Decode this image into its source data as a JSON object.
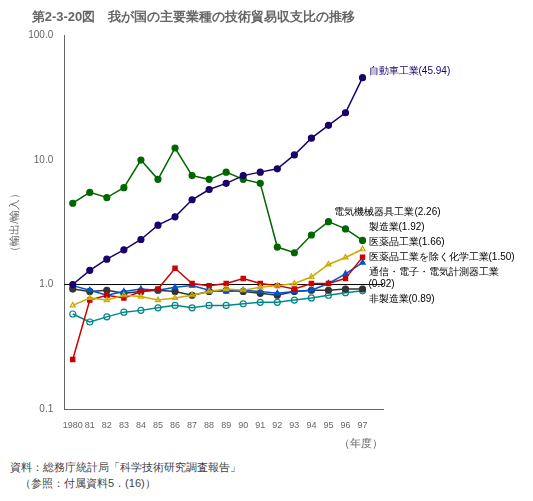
{
  "chart_data": {
    "type": "line",
    "title": "第2-3-20図　我が国の主要業種の技術貿易収支比の推移",
    "ylabel": "（輸出/輸入）",
    "xlabel": "（年度）",
    "log": "y",
    "grid": false,
    "x": [
      1980,
      1981,
      1982,
      1983,
      1984,
      1985,
      1986,
      1987,
      1988,
      1989,
      1990,
      1991,
      1992,
      1993,
      1994,
      1995,
      1996,
      1997
    ],
    "xlim": [
      1979.5,
      1998.2
    ],
    "xticks": [
      1980,
      {
        "value": 1981,
        "label": "81"
      },
      {
        "value": 1982,
        "label": "82"
      },
      {
        "value": 1983,
        "label": "83"
      },
      {
        "value": 1984,
        "label": "84"
      },
      {
        "value": 1985,
        "label": "85"
      },
      {
        "value": 1986,
        "label": "86"
      },
      {
        "value": 1987,
        "label": "87"
      },
      {
        "value": 1988,
        "label": "88"
      },
      {
        "value": 1989,
        "label": "89"
      },
      {
        "value": 1990,
        "label": "90"
      },
      {
        "value": 1991,
        "label": "91"
      },
      {
        "value": 1992,
        "label": "92"
      },
      {
        "value": 1993,
        "label": "93"
      },
      {
        "value": 1994,
        "label": "94"
      },
      {
        "value": 1995,
        "label": "95"
      },
      {
        "value": 1996,
        "label": "96"
      },
      {
        "value": 1997,
        "label": "97"
      }
    ],
    "ylim": [
      0.1,
      100.0
    ],
    "yticks": [
      0.1,
      {
        "value": 1.0,
        "label": "1.0"
      },
      {
        "value": 10.0,
        "label": "10.0"
      },
      {
        "value": 100.0,
        "label": "100.0"
      }
    ],
    "reference_lines": [
      1.0
    ],
    "series": [
      {
        "color": "#1a006b",
        "marker": "circle",
        "values": [
          1.0,
          1.3,
          1.6,
          1.9,
          2.3,
          3.0,
          3.5,
          4.8,
          5.8,
          6.5,
          7.5,
          8.0,
          8.5,
          11.0,
          15.0,
          19.0,
          24.0,
          45.94
        ]
      },
      {
        "color": "#006600",
        "marker": "circle",
        "values": [
          4.5,
          5.5,
          5.0,
          6.0,
          10.0,
          7.0,
          12.5,
          7.5,
          7.0,
          8.0,
          7.0,
          6.5,
          2.0,
          1.8,
          2.5,
          3.2,
          2.8,
          2.26
        ]
      },
      {
        "color": "#ccaa00",
        "marker": "triangle-open",
        "values": [
          0.68,
          0.78,
          0.75,
          0.82,
          0.8,
          0.75,
          0.78,
          0.82,
          0.88,
          0.92,
          0.9,
          0.95,
          0.98,
          1.02,
          1.15,
          1.45,
          1.65,
          1.92
        ]
      },
      {
        "color": "#cc0000",
        "marker": "square",
        "values": [
          0.25,
          0.75,
          0.82,
          0.78,
          0.88,
          0.92,
          1.35,
          1.02,
          0.98,
          1.02,
          1.12,
          1.02,
          0.98,
          0.92,
          1.02,
          1.02,
          1.12,
          1.66
        ]
      },
      {
        "color": "#0055cc",
        "marker": "triangle",
        "values": [
          0.98,
          0.9,
          0.82,
          0.88,
          0.92,
          0.9,
          0.95,
          0.98,
          0.9,
          0.88,
          0.9,
          0.88,
          0.85,
          0.88,
          0.9,
          1.02,
          1.22,
          1.5
        ]
      },
      {
        "color": "#333333",
        "marker": "circle",
        "values": [
          0.92,
          0.88,
          0.9,
          0.85,
          0.88,
          0.9,
          0.88,
          0.82,
          0.88,
          0.9,
          0.88,
          0.85,
          0.82,
          0.88,
          0.9,
          0.9,
          0.92,
          0.92
        ]
      },
      {
        "color": "#008888",
        "marker": "circle-open",
        "values": [
          0.58,
          0.5,
          0.55,
          0.6,
          0.62,
          0.65,
          0.68,
          0.65,
          0.68,
          0.68,
          0.7,
          0.72,
          0.72,
          0.75,
          0.78,
          0.82,
          0.86,
          0.89
        ]
      }
    ],
    "annotations": [
      {
        "text": "自動車工業(45.94)",
        "x": 1997,
        "y": 45.94,
        "color": "#1a006b"
      },
      {
        "text": "電気機械器具工業(2.26)",
        "x": 1995,
        "y": 3.2,
        "color": "#000000"
      },
      {
        "text": "製造業(1.92)",
        "x": 1997,
        "y": 1.92,
        "color": "#000000"
      },
      {
        "text": "医薬品工業(1.66)",
        "x": 1997,
        "y": 1.66,
        "color": "#000000"
      },
      {
        "text": "医薬品工業を除く化学工業(1.50)",
        "x": 1997,
        "y": 1.5,
        "color": "#000000"
      },
      {
        "text": "通信・電子・電気計測器工業\n(0.92)",
        "x": 1997,
        "y": 0.92,
        "color": "#000000"
      },
      {
        "text": "非製造業(0.89)",
        "x": 1997,
        "y": 0.89,
        "color": "#000000"
      }
    ],
    "footnotes": [
      "資料：総務庁統計局「科学技術研究調査報告」",
      "（参照：付属資料5．(16)）"
    ]
  }
}
